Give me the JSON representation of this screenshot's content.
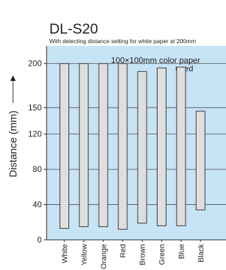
{
  "chart_data": {
    "type": "bar",
    "title": "DL-S20",
    "subtitle": "With detecting distance setting for white paper at 200mm",
    "annotation": [
      "100×100mm   color paper",
      "used"
    ],
    "ylabel": "Distance (mm)",
    "xlabel": "",
    "categories": [
      "White",
      "Yellow",
      "Orange",
      "Red",
      "Brown",
      "Green",
      "Blue",
      "Black"
    ],
    "series": [
      {
        "low": [
          13,
          15,
          15,
          12,
          19,
          16,
          16,
          34
        ],
        "high": [
          200,
          200,
          200,
          200,
          191,
          195,
          196,
          146
        ]
      }
    ],
    "y_ticks": [
      0,
      40,
      80,
      120,
      150,
      200
    ],
    "ylim": [
      0,
      220
    ],
    "grid": true,
    "legend": "none",
    "colors": {
      "plot_background": "#c7e3f6",
      "bar_fill": "#dedede",
      "bar_stroke": "#333333",
      "grid": "#444444",
      "axis": "#222222"
    }
  }
}
